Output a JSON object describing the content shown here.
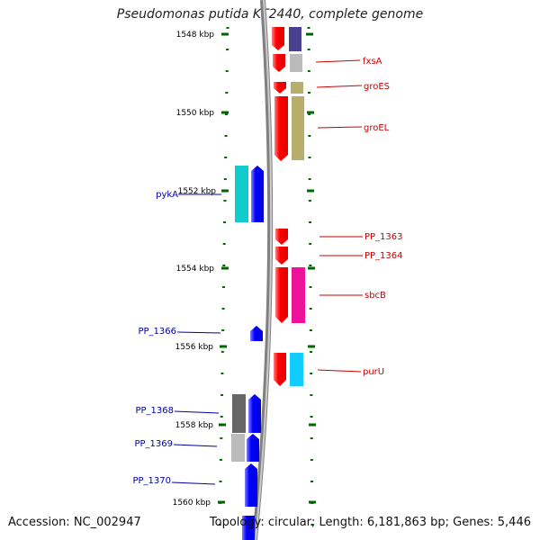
{
  "title": "Pseudomonas putida KT2440, complete genome",
  "footer": {
    "accession": "Accession: NC_002947",
    "topology": "Topology: circular; Length: 6,181,863 bp; Genes: 5,446"
  },
  "ruler": {
    "labels": [
      "1548 kbp",
      "1550 kbp",
      "1552 kbp",
      "1554 kbp",
      "1556 kbp",
      "1558 kbp",
      "1560 kbp"
    ]
  },
  "colors": {
    "forward_gene": "#ff0000",
    "reverse_gene": "#0000ff",
    "forward_label": "#cc0000",
    "reverse_label": "#0000aa",
    "tick": "#006600",
    "backbone": "#888888"
  },
  "forward_genes": [
    {
      "label": "fxsA",
      "cog_color": "#bbbbbb"
    },
    {
      "label": "groES",
      "cog_color": "#b8ad6a"
    },
    {
      "label": "groEL",
      "cog_color": "#b8ad6a"
    },
    {
      "label": "PP_1363",
      "cog_color": ""
    },
    {
      "label": "PP_1364",
      "cog_color": ""
    },
    {
      "label": "sbcB",
      "cog_color": "#ee1199"
    },
    {
      "label": "purU",
      "cog_color": "#11ccff"
    }
  ],
  "reverse_genes": [
    {
      "label": "pykA",
      "cog_color": "#11cccc"
    },
    {
      "label": "PP_1366",
      "cog_color": ""
    },
    {
      "label": "PP_1368",
      "cog_color": "#666666"
    },
    {
      "label": "PP_1369",
      "cog_color": "#bbbbbb"
    },
    {
      "label": "PP_1370",
      "cog_color": ""
    }
  ]
}
